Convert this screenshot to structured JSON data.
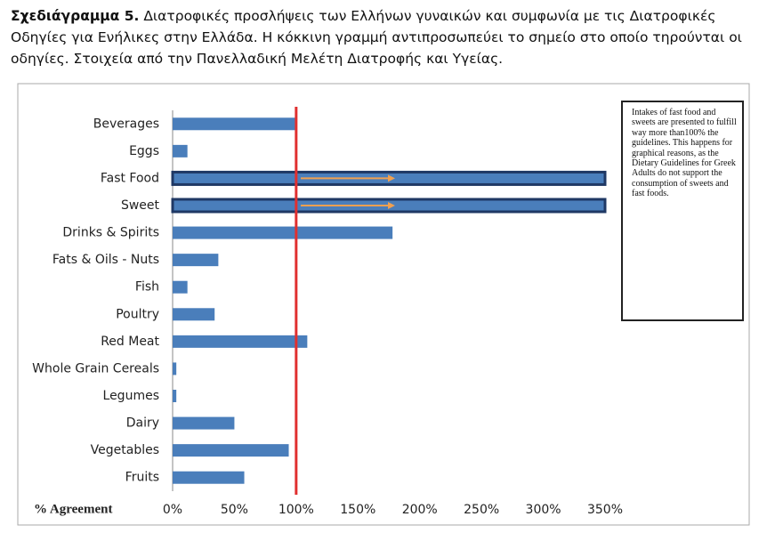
{
  "chart_data": {
    "type": "barh",
    "title_prefix": "Σχεδιάγραμμα 5.",
    "title": "Διατροφικές προσλήψεις των Ελλήνων γυναικών και συμφωνία με τις Διατροφικές Οδηγίες για Ενήλικες στην Ελλάδα. Η κόκκινη γραμμή αντιπροσωπεύει το σημείο στο οποίο τηρούνται οι οδηγίες. Στοιχεία από την Πανελλαδική Μελέτη Διατροφής και Υγείας.",
    "x_label": "% Agreement",
    "note": "Intakes of fast food and sweets are presented to fulfill way more than100% the guidelines. This happens for graphical reasons, as the Dietary Guidelines for Greek Adults do not support the consumption of sweets and fast foods.",
    "categories": [
      "Beverages",
      "Eggs",
      "Fast Food",
      "Sweet",
      "Drinks & Spirits",
      "Fats & Oils - Nuts",
      "Fish",
      "Poultry",
      "Red Meat",
      "Whole Grain Cereals",
      "Legumes",
      "Dairy",
      "Vegetables",
      "Fruits"
    ],
    "values": [
      99,
      12,
      350,
      350,
      178,
      37,
      12,
      34,
      109,
      3,
      3,
      50,
      94,
      58
    ],
    "color": "#4a7ebb",
    "reference_line": 100,
    "reference_color": "#e03030",
    "xlim": [
      0,
      350
    ],
    "xticks": [
      {
        "value": 0,
        "label": "0%"
      },
      {
        "value": 50,
        "label": "50%"
      },
      {
        "value": 100,
        "label": "100%"
      },
      {
        "value": 150,
        "label": "150%"
      },
      {
        "value": 200,
        "label": "200%"
      },
      {
        "value": 250,
        "label": "250%"
      },
      {
        "value": 300,
        "label": "300%"
      },
      {
        "value": 350,
        "label": "350%"
      }
    ]
  }
}
